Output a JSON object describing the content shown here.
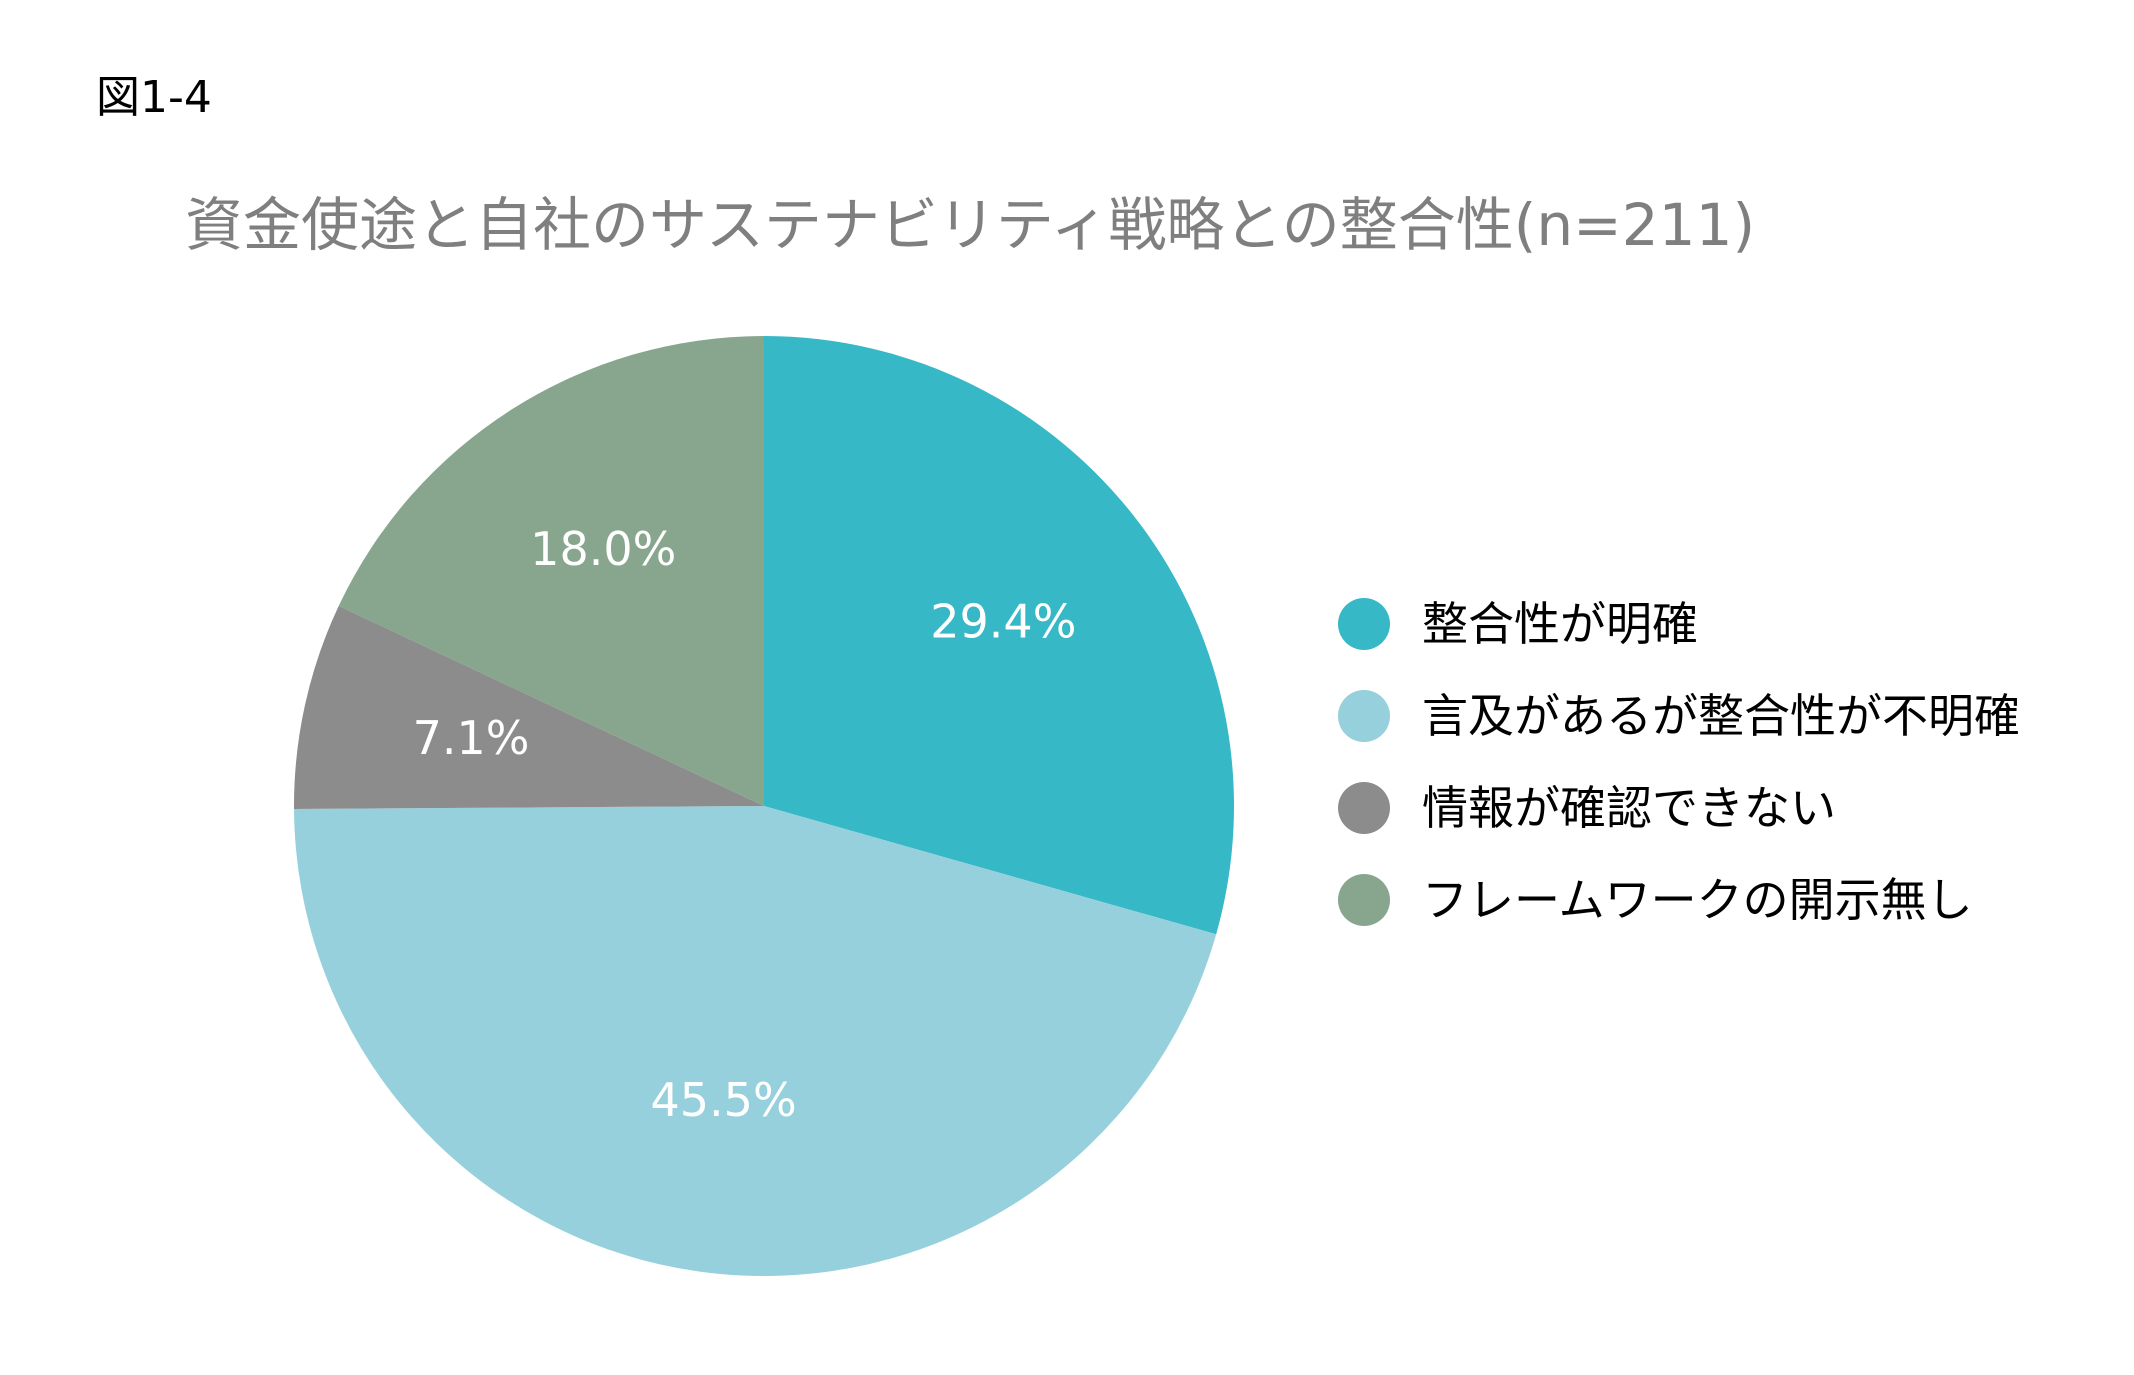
{
  "figure_label": "図1-4",
  "chart_data": {
    "type": "pie",
    "title": "資金使途と自社のサステナビリティ戦略との整合性(n=211)",
    "categories": [
      "整合性が明確",
      "言及があるが整合性が不明確",
      "情報が確認できない",
      "フレームワークの開示無し"
    ],
    "values": [
      29.4,
      45.5,
      7.1,
      18.0
    ],
    "value_labels": [
      "29.4%",
      "45.5%",
      "7.1%",
      "18.0%"
    ],
    "colors": [
      "#36b8c6",
      "#96d0dc",
      "#8c8c8c",
      "#88a58d"
    ],
    "start_angle": "12 o'clock",
    "direction": "clockwise",
    "legend_position": "right"
  }
}
